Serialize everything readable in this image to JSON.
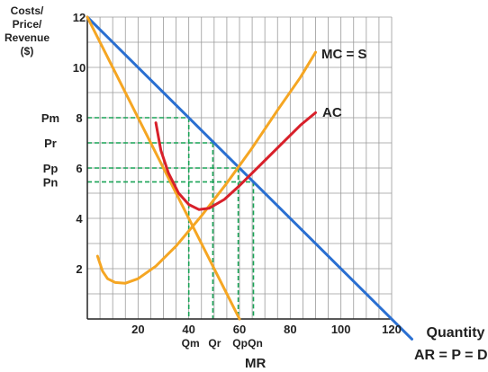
{
  "chart_data": {
    "type": "line",
    "ylabel_lines": [
      "Costs/",
      "Price/",
      "Revenue",
      "($)"
    ],
    "xlabel": "Quantity",
    "xlim": [
      0,
      120
    ],
    "ylim": [
      0,
      12
    ],
    "grid": true,
    "x_ticks": [
      20,
      40,
      60,
      80,
      100,
      120
    ],
    "x_tick_labels": [
      "20",
      "40",
      "60",
      "80",
      "100",
      "120"
    ],
    "y_ticks": [
      2,
      4,
      6,
      8,
      10,
      12
    ],
    "y_tick_labels": [
      "2",
      "4",
      "6",
      "8",
      "10",
      "12"
    ],
    "price_markers": [
      {
        "label": "Pm",
        "y": 8
      },
      {
        "label": "Pr",
        "y": 7
      },
      {
        "label": "Pp",
        "y": 6
      },
      {
        "label": "Pn",
        "y": 5.45
      }
    ],
    "quantity_markers": [
      {
        "label": "Qm",
        "x": 40,
        "ytop": 8
      },
      {
        "label": "Qr",
        "x": 49.5,
        "ytop": 7
      },
      {
        "label": "Qp",
        "x": 59.5,
        "ytop": 6
      },
      {
        "label": "Qn",
        "x": 65.5,
        "ytop": 5.45
      }
    ],
    "series": [
      {
        "name": "AR = P = D",
        "color": "#2a6fd1",
        "points": [
          [
            0,
            12
          ],
          [
            128,
            -0.8
          ]
        ]
      },
      {
        "name": "MR",
        "color": "#f5a623",
        "points": [
          [
            0,
            12
          ],
          [
            60,
            0
          ]
        ]
      },
      {
        "name": "MC = S",
        "color": "#f5a623",
        "points": [
          [
            4,
            2.5
          ],
          [
            6,
            1.9
          ],
          [
            8,
            1.6
          ],
          [
            11,
            1.45
          ],
          [
            15,
            1.42
          ],
          [
            20,
            1.6
          ],
          [
            27,
            2.1
          ],
          [
            35,
            2.9
          ],
          [
            45,
            4.1
          ],
          [
            55,
            5.4
          ],
          [
            65,
            6.8
          ],
          [
            75,
            8.3
          ],
          [
            84,
            9.6
          ],
          [
            90,
            10.6
          ]
        ]
      },
      {
        "name": "AC",
        "color": "#d8202a",
        "points": [
          [
            27,
            7.8
          ],
          [
            29,
            6.7
          ],
          [
            32,
            5.8
          ],
          [
            36,
            5.0
          ],
          [
            40,
            4.55
          ],
          [
            44,
            4.35
          ],
          [
            48,
            4.4
          ],
          [
            54,
            4.75
          ],
          [
            60,
            5.3
          ],
          [
            66,
            5.9
          ],
          [
            72,
            6.5
          ],
          [
            78,
            7.1
          ],
          [
            84,
            7.7
          ],
          [
            90,
            8.2
          ]
        ]
      }
    ],
    "colors": {
      "grid": "#9a9a9a",
      "guides": "#19a356",
      "axis": "#222222"
    }
  }
}
